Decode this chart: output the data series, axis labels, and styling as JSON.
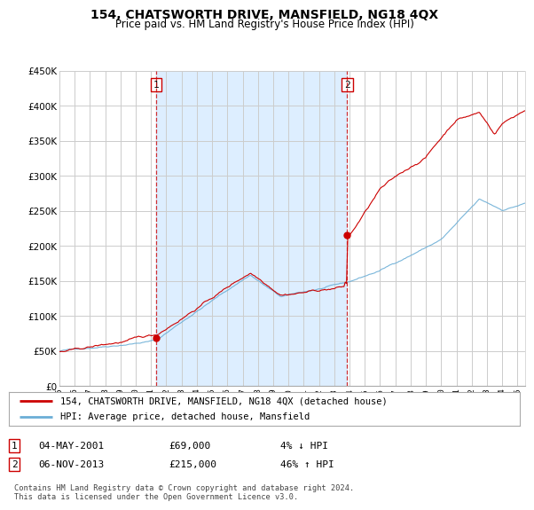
{
  "title": "154, CHATSWORTH DRIVE, MANSFIELD, NG18 4QX",
  "subtitle": "Price paid vs. HM Land Registry's House Price Index (HPI)",
  "legend_line1": "154, CHATSWORTH DRIVE, MANSFIELD, NG18 4QX (detached house)",
  "legend_line2": "HPI: Average price, detached house, Mansfield",
  "sale1_date": "04-MAY-2001",
  "sale1_price": "£69,000",
  "sale1_hpi": "4% ↓ HPI",
  "sale2_date": "06-NOV-2013",
  "sale2_price": "£215,000",
  "sale2_hpi": "46% ↑ HPI",
  "footer": "Contains HM Land Registry data © Crown copyright and database right 2024.\nThis data is licensed under the Open Government Licence v3.0.",
  "sale1_year": 2001.35,
  "sale1_value": 69000,
  "sale2_year": 2013.85,
  "sale2_value": 215000,
  "hpi_color": "#6baed6",
  "price_color": "#cc0000",
  "dashed_color": "#cc0000",
  "shade_color": "#ddeeff",
  "background_color": "#ffffff",
  "grid_color": "#cccccc",
  "ylim": [
    0,
    450000
  ],
  "xlim_start": 1995,
  "xlim_end": 2025.5,
  "title_fontsize": 10,
  "subtitle_fontsize": 8.5
}
